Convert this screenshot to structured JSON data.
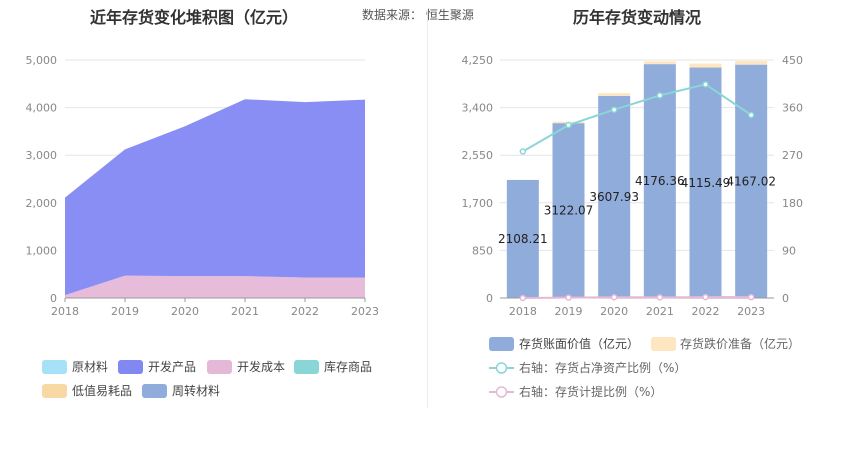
{
  "left": {
    "title": "近年存货变化堆积图（亿元）",
    "source": "数据来源：  恒生聚源"
  },
  "right": {
    "title": "历年存货变动情况"
  },
  "colors": {
    "yuancailiao": "#a6e1f7",
    "kaifachanpin": "#8288f2",
    "kaifachengben": "#e6b8d8",
    "kucunshangpin": "#8ad6d6",
    "dizhiyihaopin": "#f9d9a3",
    "zhouzhuancailiao": "#8facdb",
    "book_value": "#8facdb",
    "impairment": "#fde6c0",
    "ratio_line": "#8ad6d6",
    "provision_line": "#e6b8d8"
  },
  "chart_data": [
    {
      "type": "area",
      "stacked": true,
      "x": [
        "2018",
        "2019",
        "2020",
        "2021",
        "2022",
        "2023"
      ],
      "ylim": [
        0,
        5000
      ],
      "yticks": [
        "0",
        "1,000",
        "2,000",
        "3,000",
        "4,000",
        "5,000"
      ],
      "grid": true,
      "legend_position": "bottom",
      "legend": [
        "原材料",
        "开发产品",
        "开发成本",
        "库存商品",
        "低值易耗品",
        "周转材料"
      ],
      "series": [
        {
          "name": "开发成本",
          "values": [
            60,
            470,
            460,
            460,
            430,
            430
          ]
        },
        {
          "name": "开发产品",
          "values": [
            2048,
            2652,
            3148,
            3716,
            3685,
            3737
          ]
        }
      ]
    },
    {
      "type": "bar",
      "stacked": true,
      "categories": [
        "2018",
        "2019",
        "2020",
        "2021",
        "2022",
        "2023"
      ],
      "ylim": [
        0,
        4250
      ],
      "yticks": [
        "0",
        "850",
        "1,700",
        "2,550",
        "3,400",
        "4,250"
      ],
      "y2lim": [
        0,
        450
      ],
      "y2ticks": [
        "0",
        "90",
        "180",
        "270",
        "360",
        "450"
      ],
      "grid": true,
      "legend_position": "bottom",
      "series": [
        {
          "name": "存货账面价值（亿元）",
          "values": [
            2108.21,
            3122.07,
            3607.93,
            4176.36,
            4115.49,
            4167.02
          ],
          "labels": [
            "2108.21",
            "3122.07",
            "3607.93",
            "4176.36",
            "4115.49",
            "4167.02"
          ]
        },
        {
          "name": "存货跌价准备（亿元）",
          "values": [
            0,
            25,
            50,
            50,
            70,
            65
          ]
        }
      ],
      "lines": [
        {
          "name": "右轴：存货占净资产比例（%）",
          "axis": "right",
          "values": [
            277,
            327,
            356,
            383,
            404,
            346
          ]
        },
        {
          "name": "右轴：存货计提比例（%）",
          "axis": "right",
          "values": [
            0,
            0.8,
            1.4,
            1.2,
            1.7,
            1.6
          ]
        }
      ]
    }
  ]
}
